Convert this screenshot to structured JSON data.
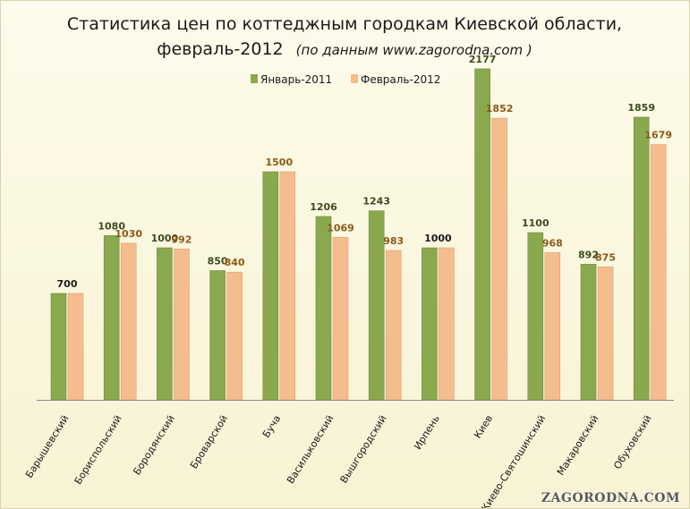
{
  "chart_data": {
    "type": "bar",
    "title": "Статистика цен по коттеджным городкам Киевской области,",
    "subtitle_main": "февраль-2012",
    "subtitle_note": "(по данным www.zagorodna.com )",
    "categories": [
      "Барышевский",
      "Бориспольский",
      "Бородянский",
      "Броварской",
      "Буча",
      "Васильковский",
      "Вышгородский",
      "Ирпень",
      "Киев",
      "Киево-Святошинский",
      "Макаровский",
      "Обуховский"
    ],
    "series": [
      {
        "name": "Январь-2011",
        "color": "#8aa84e",
        "label_color": "#3d4a1f",
        "values": [
          700,
          1080,
          1000,
          850,
          1500,
          1206,
          1243,
          1000,
          2177,
          1100,
          892,
          1859
        ],
        "labels": [
          "",
          "1080",
          "1000",
          "850",
          "",
          "1206",
          "1243",
          "",
          "2177",
          "1100",
          "892",
          "1859"
        ]
      },
      {
        "name": "Февраль-2012",
        "color": "#f4bd8e",
        "label_color": "#8a5a1a",
        "values": [
          700,
          1030,
          992,
          840,
          1500,
          1069,
          983,
          1000,
          1852,
          968,
          875,
          1679
        ],
        "labels": [
          "",
          "1030",
          "992",
          "840",
          "",
          "1069",
          "983",
          "",
          "1852",
          "968",
          "875",
          "1679"
        ]
      }
    ],
    "shared_labels": [
      "700",
      "",
      "",
      "",
      "1500",
      "",
      "",
      "1000",
      "",
      "",
      "",
      ""
    ],
    "shared_label_colors": [
      "#1a1a1a",
      "",
      "",
      "",
      "#8a5a1a",
      "",
      "",
      "#1a1a1a",
      "",
      "",
      "",
      ""
    ],
    "ylim": [
      0,
      2200
    ],
    "grid": false,
    "legend_position": "top"
  },
  "watermark": "ZAGORODNA.COM"
}
